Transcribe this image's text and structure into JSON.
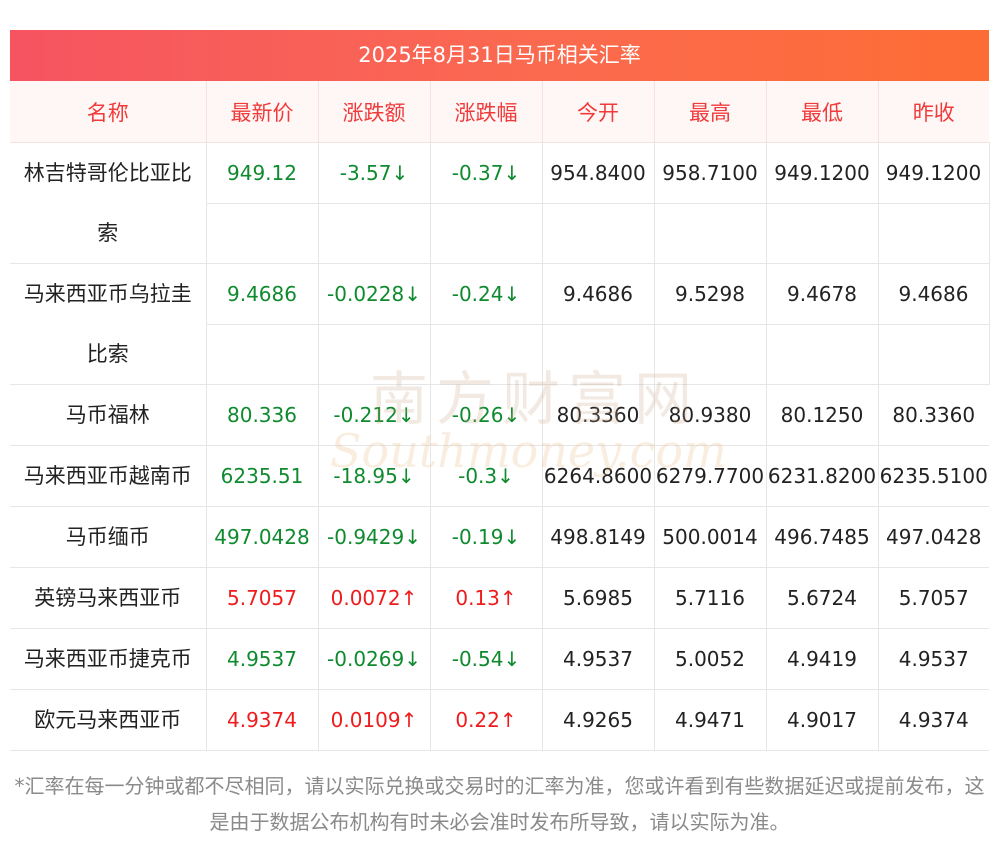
{
  "title": "2025年8月31日马币相关汇率",
  "headers": [
    "名称",
    "最新价",
    "涨跌额",
    "涨跌幅",
    "今开",
    "最高",
    "最低",
    "昨收"
  ],
  "rows": [
    {
      "name": "林吉特哥伦比亚比索",
      "latest": "949.12",
      "change": "-3.57↓",
      "pct": "-0.37↓",
      "open": "954.8400",
      "high": "958.7100",
      "low": "949.1200",
      "prev": "949.1200",
      "dir": "down",
      "tall": true
    },
    {
      "name": "马来西亚币乌拉圭比索",
      "latest": "9.4686",
      "change": "-0.0228↓",
      "pct": "-0.24↓",
      "open": "9.4686",
      "high": "9.5298",
      "low": "9.4678",
      "prev": "9.4686",
      "dir": "down",
      "tall": true
    },
    {
      "name": "马币福林",
      "latest": "80.336",
      "change": "-0.212↓",
      "pct": "-0.26↓",
      "open": "80.3360",
      "high": "80.9380",
      "low": "80.1250",
      "prev": "80.3360",
      "dir": "down",
      "tall": false
    },
    {
      "name": "马来西亚币越南币",
      "latest": "6235.51",
      "change": "-18.95↓",
      "pct": "-0.3↓",
      "open": "6264.8600",
      "high": "6279.7700",
      "low": "6231.8200",
      "prev": "6235.5100",
      "dir": "down",
      "tall": false
    },
    {
      "name": "马币缅币",
      "latest": "497.0428",
      "change": "-0.9429↓",
      "pct": "-0.19↓",
      "open": "498.8149",
      "high": "500.0014",
      "low": "496.7485",
      "prev": "497.0428",
      "dir": "down",
      "tall": false
    },
    {
      "name": "英镑马来西亚币",
      "latest": "5.7057",
      "change": "0.0072↑",
      "pct": "0.13↑",
      "open": "5.6985",
      "high": "5.7116",
      "low": "5.6724",
      "prev": "5.7057",
      "dir": "up",
      "tall": false
    },
    {
      "name": "马来西亚币捷克币",
      "latest": "4.9537",
      "change": "-0.0269↓",
      "pct": "-0.54↓",
      "open": "4.9537",
      "high": "5.0052",
      "low": "4.9419",
      "prev": "4.9537",
      "dir": "down",
      "tall": false
    },
    {
      "name": "欧元马来西亚币",
      "latest": "4.9374",
      "change": "0.0109↑",
      "pct": "0.22↑",
      "open": "4.9265",
      "high": "4.9471",
      "low": "4.9017",
      "prev": "4.9374",
      "dir": "up",
      "tall": false
    }
  ],
  "footnote": "*汇率在每一分钟或都不尽相同，请以实际兑换或交易时的汇率为准，您或许看到有些数据延迟或提前发布，这是由于数据公布机构有时未必会准时发布所导致，请以实际为准。",
  "watermark": {
    "cn": "南方财富网",
    "en": "Southmoney.com"
  },
  "colors": {
    "header_gradient_start": "#f65461",
    "header_gradient_end": "#fd6c34",
    "up": "#ee1c1c",
    "down": "#0f8a2e",
    "header_text": "#ef3b3b"
  }
}
